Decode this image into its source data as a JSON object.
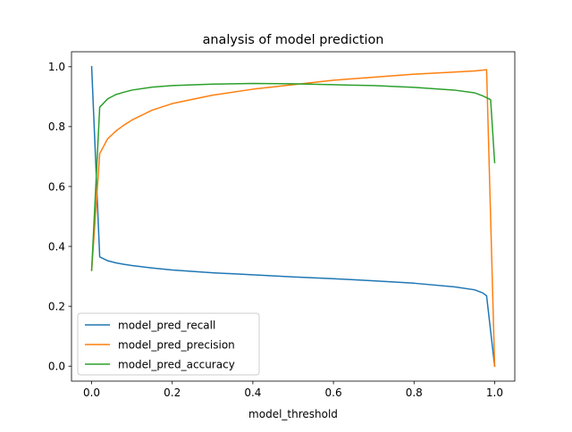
{
  "chart_data": {
    "type": "line",
    "title": "analysis of model prediction",
    "xlabel": "model_threshold",
    "ylabel": "",
    "xlim": [
      -0.05,
      1.05
    ],
    "ylim": [
      -0.05,
      1.05
    ],
    "x_ticks": [
      0.0,
      0.2,
      0.4,
      0.6,
      0.8,
      1.0
    ],
    "x_tick_labels": [
      "0.0",
      "0.2",
      "0.4",
      "0.6",
      "0.8",
      "1.0"
    ],
    "y_ticks": [
      0.0,
      0.2,
      0.4,
      0.6,
      0.8,
      1.0
    ],
    "y_tick_labels": [
      "0.0",
      "0.2",
      "0.4",
      "0.6",
      "0.8",
      "1.0"
    ],
    "grid": false,
    "legend_position": "lower-left",
    "series": [
      {
        "name": "model_pred_recall",
        "color": "#1f77b4",
        "points": [
          [
            0.0,
            1.0
          ],
          [
            0.02,
            0.365
          ],
          [
            0.04,
            0.352
          ],
          [
            0.06,
            0.345
          ],
          [
            0.08,
            0.34
          ],
          [
            0.1,
            0.336
          ],
          [
            0.15,
            0.328
          ],
          [
            0.2,
            0.321
          ],
          [
            0.3,
            0.312
          ],
          [
            0.4,
            0.305
          ],
          [
            0.5,
            0.298
          ],
          [
            0.6,
            0.292
          ],
          [
            0.7,
            0.285
          ],
          [
            0.8,
            0.277
          ],
          [
            0.9,
            0.265
          ],
          [
            0.95,
            0.255
          ],
          [
            0.97,
            0.245
          ],
          [
            0.98,
            0.235
          ],
          [
            1.0,
            0.0
          ]
        ]
      },
      {
        "name": "model_pred_precision",
        "color": "#ff7f0e",
        "points": [
          [
            0.0,
            0.32
          ],
          [
            0.02,
            0.71
          ],
          [
            0.04,
            0.76
          ],
          [
            0.06,
            0.785
          ],
          [
            0.08,
            0.805
          ],
          [
            0.1,
            0.822
          ],
          [
            0.15,
            0.855
          ],
          [
            0.2,
            0.877
          ],
          [
            0.3,
            0.905
          ],
          [
            0.4,
            0.925
          ],
          [
            0.5,
            0.94
          ],
          [
            0.6,
            0.955
          ],
          [
            0.7,
            0.965
          ],
          [
            0.8,
            0.975
          ],
          [
            0.9,
            0.982
          ],
          [
            0.95,
            0.986
          ],
          [
            0.98,
            0.99
          ],
          [
            1.0,
            0.0
          ]
        ]
      },
      {
        "name": "model_pred_accuracy",
        "color": "#2ca02c",
        "points": [
          [
            0.0,
            0.32
          ],
          [
            0.02,
            0.865
          ],
          [
            0.04,
            0.893
          ],
          [
            0.06,
            0.907
          ],
          [
            0.08,
            0.915
          ],
          [
            0.1,
            0.922
          ],
          [
            0.15,
            0.932
          ],
          [
            0.2,
            0.937
          ],
          [
            0.3,
            0.942
          ],
          [
            0.4,
            0.944
          ],
          [
            0.5,
            0.943
          ],
          [
            0.6,
            0.94
          ],
          [
            0.7,
            0.937
          ],
          [
            0.8,
            0.931
          ],
          [
            0.9,
            0.922
          ],
          [
            0.95,
            0.913
          ],
          [
            0.97,
            0.903
          ],
          [
            0.99,
            0.89
          ],
          [
            1.0,
            0.68
          ]
        ]
      }
    ]
  }
}
